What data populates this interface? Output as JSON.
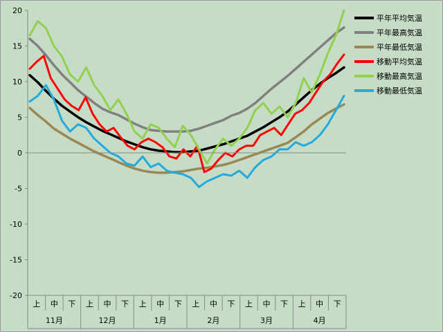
{
  "chart_data": {
    "type": "line",
    "ylim": [
      -20,
      20
    ],
    "y_ticks": [
      20,
      15,
      10,
      5,
      0,
      -5,
      -10,
      -15,
      -20
    ],
    "x_sub_labels": [
      "上",
      "中",
      "下"
    ],
    "months": [
      "11月",
      "12月",
      "1月",
      "2月",
      "3月",
      "4月"
    ],
    "grid": "none",
    "legend_position": "right",
    "x_samples_per_month": 9,
    "series": [
      {
        "name": "平年平均気温",
        "color": "#000000",
        "width": 3.5,
        "values": [
          10.9,
          9.9,
          8.7,
          7.6,
          6.6,
          5.8,
          5.0,
          4.3,
          3.7,
          3.1,
          2.6,
          2.1,
          1.6,
          1.2,
          0.8,
          0.5,
          0.3,
          0.2,
          0.1,
          0.1,
          0.2,
          0.3,
          0.6,
          0.9,
          1.2,
          1.6,
          2.0,
          2.4,
          3.0,
          3.6,
          4.3,
          5.0,
          5.8,
          6.8,
          7.8,
          8.8,
          9.7,
          10.5,
          11.2,
          12.0
        ]
      },
      {
        "name": "平年最高気温",
        "color": "#808080",
        "width": 3.5,
        "values": [
          16.0,
          15.0,
          13.7,
          12.3,
          11.0,
          9.9,
          8.8,
          7.9,
          7.0,
          6.2,
          5.7,
          5.3,
          4.7,
          4.1,
          3.6,
          3.2,
          3.1,
          3.0,
          3.0,
          3.0,
          3.1,
          3.4,
          3.8,
          4.2,
          4.6,
          5.2,
          5.6,
          6.2,
          7.0,
          8.0,
          9.0,
          9.9,
          10.8,
          11.8,
          12.8,
          13.8,
          14.8,
          15.8,
          16.8,
          17.6
        ]
      },
      {
        "name": "平年最低気温",
        "color": "#998855",
        "width": 3.5,
        "values": [
          6.3,
          5.3,
          4.4,
          3.4,
          2.7,
          2.0,
          1.4,
          0.8,
          0.2,
          -0.3,
          -0.8,
          -1.3,
          -1.8,
          -2.2,
          -2.5,
          -2.7,
          -2.8,
          -2.8,
          -2.7,
          -2.6,
          -2.4,
          -2.2,
          -2.1,
          -1.9,
          -1.7,
          -1.4,
          -1.0,
          -0.6,
          -0.2,
          0.2,
          0.6,
          1.0,
          1.4,
          2.2,
          3.0,
          4.0,
          4.8,
          5.6,
          6.2,
          6.8
        ]
      },
      {
        "name": "移動平均気温",
        "color": "#ff0000",
        "width": 3,
        "values": [
          11.8,
          12.8,
          13.6,
          10.5,
          9.0,
          7.5,
          6.6,
          6.0,
          7.8,
          5.5,
          4.0,
          3.0,
          3.5,
          2.2,
          1.0,
          0.5,
          1.5,
          2.0,
          1.5,
          0.8,
          -0.5,
          -0.8,
          0.5,
          -0.5,
          1.0,
          -2.7,
          -2.2,
          -1.0,
          0.0,
          -0.5,
          0.5,
          1.0,
          1.0,
          2.5,
          3.0,
          3.5,
          2.5,
          4.0,
          5.5,
          6.0,
          7.0,
          8.5,
          10.0,
          11.0,
          12.5,
          13.8
        ]
      },
      {
        "name": "移動最高気温",
        "color": "#92d050",
        "width": 3,
        "values": [
          16.5,
          18.5,
          17.5,
          15.0,
          13.5,
          11.0,
          10.0,
          12.0,
          9.5,
          8.0,
          6.0,
          7.5,
          5.5,
          3.0,
          2.0,
          4.0,
          3.5,
          2.0,
          0.8,
          3.8,
          2.5,
          0.5,
          -1.5,
          0.5,
          2.0,
          1.0,
          2.0,
          3.5,
          6.0,
          7.0,
          5.5,
          6.5,
          5.0,
          7.0,
          10.5,
          8.5,
          11.0,
          14.0,
          16.5,
          20.0
        ]
      },
      {
        "name": "移動最低気温",
        "color": "#22aadd",
        "width": 3,
        "values": [
          7.2,
          8.0,
          9.5,
          7.5,
          4.5,
          3.0,
          4.0,
          3.5,
          2.0,
          1.0,
          0.0,
          -0.5,
          -1.5,
          -1.8,
          -0.5,
          -2.0,
          -1.5,
          -2.5,
          -2.8,
          -3.0,
          -3.5,
          -4.8,
          -4.0,
          -3.5,
          -3.0,
          -3.2,
          -2.5,
          -3.5,
          -2.0,
          -1.0,
          -0.5,
          0.5,
          0.5,
          1.5,
          1.0,
          1.5,
          2.5,
          4.0,
          6.0,
          8.0
        ]
      }
    ]
  }
}
